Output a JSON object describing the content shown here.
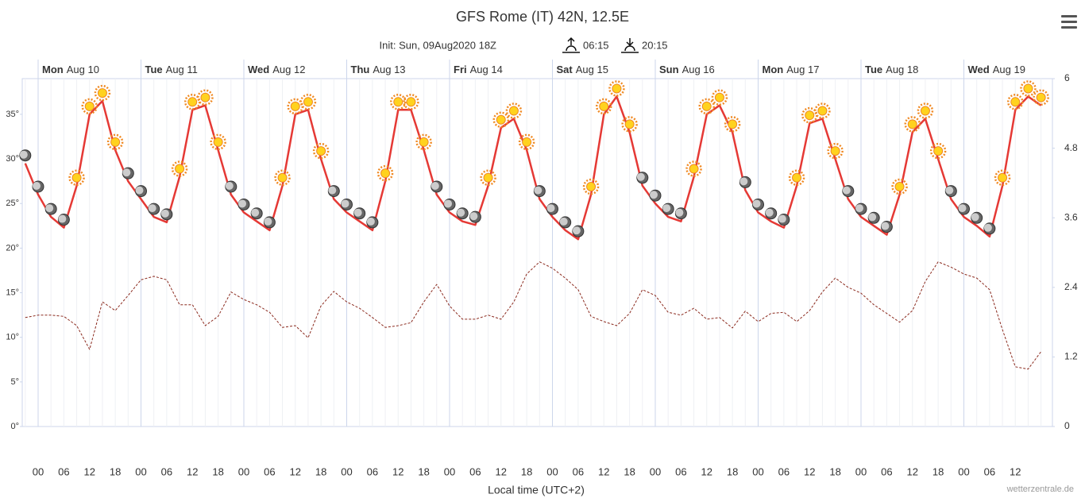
{
  "chart_data": {
    "type": "line",
    "title": "GFS Rome (IT) 42N, 12.5E",
    "init": "Init: Sun, 09Aug2020 18Z",
    "sunrise": "06:15",
    "sunset": "20:15",
    "x_label": "Local time (UTC+2)",
    "credit": "wetterzentrale.de",
    "days": [
      {
        "weekday": "Mon",
        "date": "Aug 10"
      },
      {
        "weekday": "Tue",
        "date": "Aug 11"
      },
      {
        "weekday": "Wed",
        "date": "Aug 12"
      },
      {
        "weekday": "Thu",
        "date": "Aug 13"
      },
      {
        "weekday": "Fri",
        "date": "Aug 14"
      },
      {
        "weekday": "Sat",
        "date": "Aug 15"
      },
      {
        "weekday": "Sun",
        "date": "Aug 16"
      },
      {
        "weekday": "Mon",
        "date": "Aug 17"
      },
      {
        "weekday": "Tue",
        "date": "Aug 18"
      },
      {
        "weekday": "Wed",
        "date": "Aug 19"
      }
    ],
    "hour_ticks": [
      "00",
      "06",
      "12",
      "18"
    ],
    "x": [
      "Aug 09 21",
      "Aug 10 00",
      "Aug 10 03",
      "Aug 10 06",
      "Aug 10 09",
      "Aug 10 12",
      "Aug 10 15",
      "Aug 10 18",
      "Aug 10 21",
      "Aug 11 00",
      "Aug 11 03",
      "Aug 11 06",
      "Aug 11 09",
      "Aug 11 12",
      "Aug 11 15",
      "Aug 11 18",
      "Aug 11 21",
      "Aug 12 00",
      "Aug 12 03",
      "Aug 12 06",
      "Aug 12 09",
      "Aug 12 12",
      "Aug 12 15",
      "Aug 12 18",
      "Aug 12 21",
      "Aug 13 00",
      "Aug 13 03",
      "Aug 13 06",
      "Aug 13 09",
      "Aug 13 12",
      "Aug 13 15",
      "Aug 13 18",
      "Aug 13 21",
      "Aug 14 00",
      "Aug 14 03",
      "Aug 14 06",
      "Aug 14 09",
      "Aug 14 12",
      "Aug 14 15",
      "Aug 14 18",
      "Aug 14 21",
      "Aug 15 00",
      "Aug 15 03",
      "Aug 15 06",
      "Aug 15 09",
      "Aug 15 12",
      "Aug 15 15",
      "Aug 15 18",
      "Aug 15 21",
      "Aug 16 00",
      "Aug 16 03",
      "Aug 16 06",
      "Aug 16 09",
      "Aug 16 12",
      "Aug 16 15",
      "Aug 16 18",
      "Aug 16 21",
      "Aug 17 00",
      "Aug 17 03",
      "Aug 17 06",
      "Aug 17 09",
      "Aug 17 12",
      "Aug 17 15",
      "Aug 17 18",
      "Aug 17 21",
      "Aug 18 00",
      "Aug 18 03",
      "Aug 18 06",
      "Aug 18 09",
      "Aug 18 12",
      "Aug 18 15",
      "Aug 18 18",
      "Aug 18 21",
      "Aug 19 00",
      "Aug 19 03",
      "Aug 19 06",
      "Aug 19 09",
      "Aug 19 12",
      "Aug 19 15",
      "Aug 19 18"
    ],
    "series": [
      {
        "color": "#e53935",
        "axis": "y",
        "dash": false,
        "values": [
          29.5,
          26,
          23.5,
          22.3,
          27,
          35,
          36.5,
          31,
          27.5,
          25.5,
          23.5,
          22.9,
          28,
          35.5,
          36,
          31,
          26,
          24,
          23,
          22,
          27,
          35,
          35.5,
          30,
          25.5,
          24,
          23,
          22,
          27.5,
          35.5,
          35.5,
          31,
          26,
          24,
          23,
          22.6,
          27,
          33.5,
          34.5,
          31,
          25.5,
          23.5,
          22,
          21,
          26,
          35,
          37,
          33,
          27,
          25,
          23.5,
          23,
          28,
          35,
          36,
          33,
          26.5,
          24,
          23,
          22.3,
          27,
          34,
          34.5,
          30,
          25.5,
          23.5,
          22.5,
          21.5,
          26,
          33,
          34.5,
          30,
          25.5,
          23.5,
          22.5,
          21.3,
          27,
          35.5,
          37,
          36
        ]
      },
      {
        "color": "#8b2a1e",
        "axis": "y2",
        "dash": true,
        "values": [
          1.88,
          1.92,
          1.92,
          1.9,
          1.74,
          1.33,
          2.15,
          2.0,
          2.26,
          2.53,
          2.59,
          2.53,
          2.1,
          2.1,
          1.74,
          1.9,
          2.32,
          2.19,
          2.1,
          1.97,
          1.71,
          1.74,
          1.53,
          2.08,
          2.33,
          2.15,
          2.04,
          1.88,
          1.71,
          1.74,
          1.79,
          2.15,
          2.45,
          2.08,
          1.85,
          1.85,
          1.92,
          1.85,
          2.15,
          2.63,
          2.84,
          2.73,
          2.56,
          2.36,
          1.9,
          1.81,
          1.74,
          1.95,
          2.36,
          2.26,
          1.97,
          1.92,
          2.04,
          1.85,
          1.88,
          1.7,
          1.99,
          1.81,
          1.95,
          1.97,
          1.81,
          2.0,
          2.32,
          2.56,
          2.4,
          2.3,
          2.1,
          1.95,
          1.8,
          2.0,
          2.5,
          2.84,
          2.75,
          2.63,
          2.56,
          2.36,
          1.67,
          1.03,
          0.99,
          1.29
        ]
      }
    ],
    "ylim": [
      0,
      39
    ],
    "yticks": [
      {
        "value": 0,
        "label": "0°"
      },
      {
        "value": 5,
        "label": "5°"
      },
      {
        "value": 10,
        "label": "10°"
      },
      {
        "value": 15,
        "label": "15°"
      },
      {
        "value": 20,
        "label": "20°"
      },
      {
        "value": 25,
        "label": "25°"
      },
      {
        "value": 30,
        "label": "30°"
      },
      {
        "value": 35,
        "label": "35°"
      }
    ],
    "y2lim": [
      0,
      6
    ],
    "y2ticks": [
      0,
      1.2,
      2.4,
      3.6,
      4.8,
      6
    ]
  }
}
